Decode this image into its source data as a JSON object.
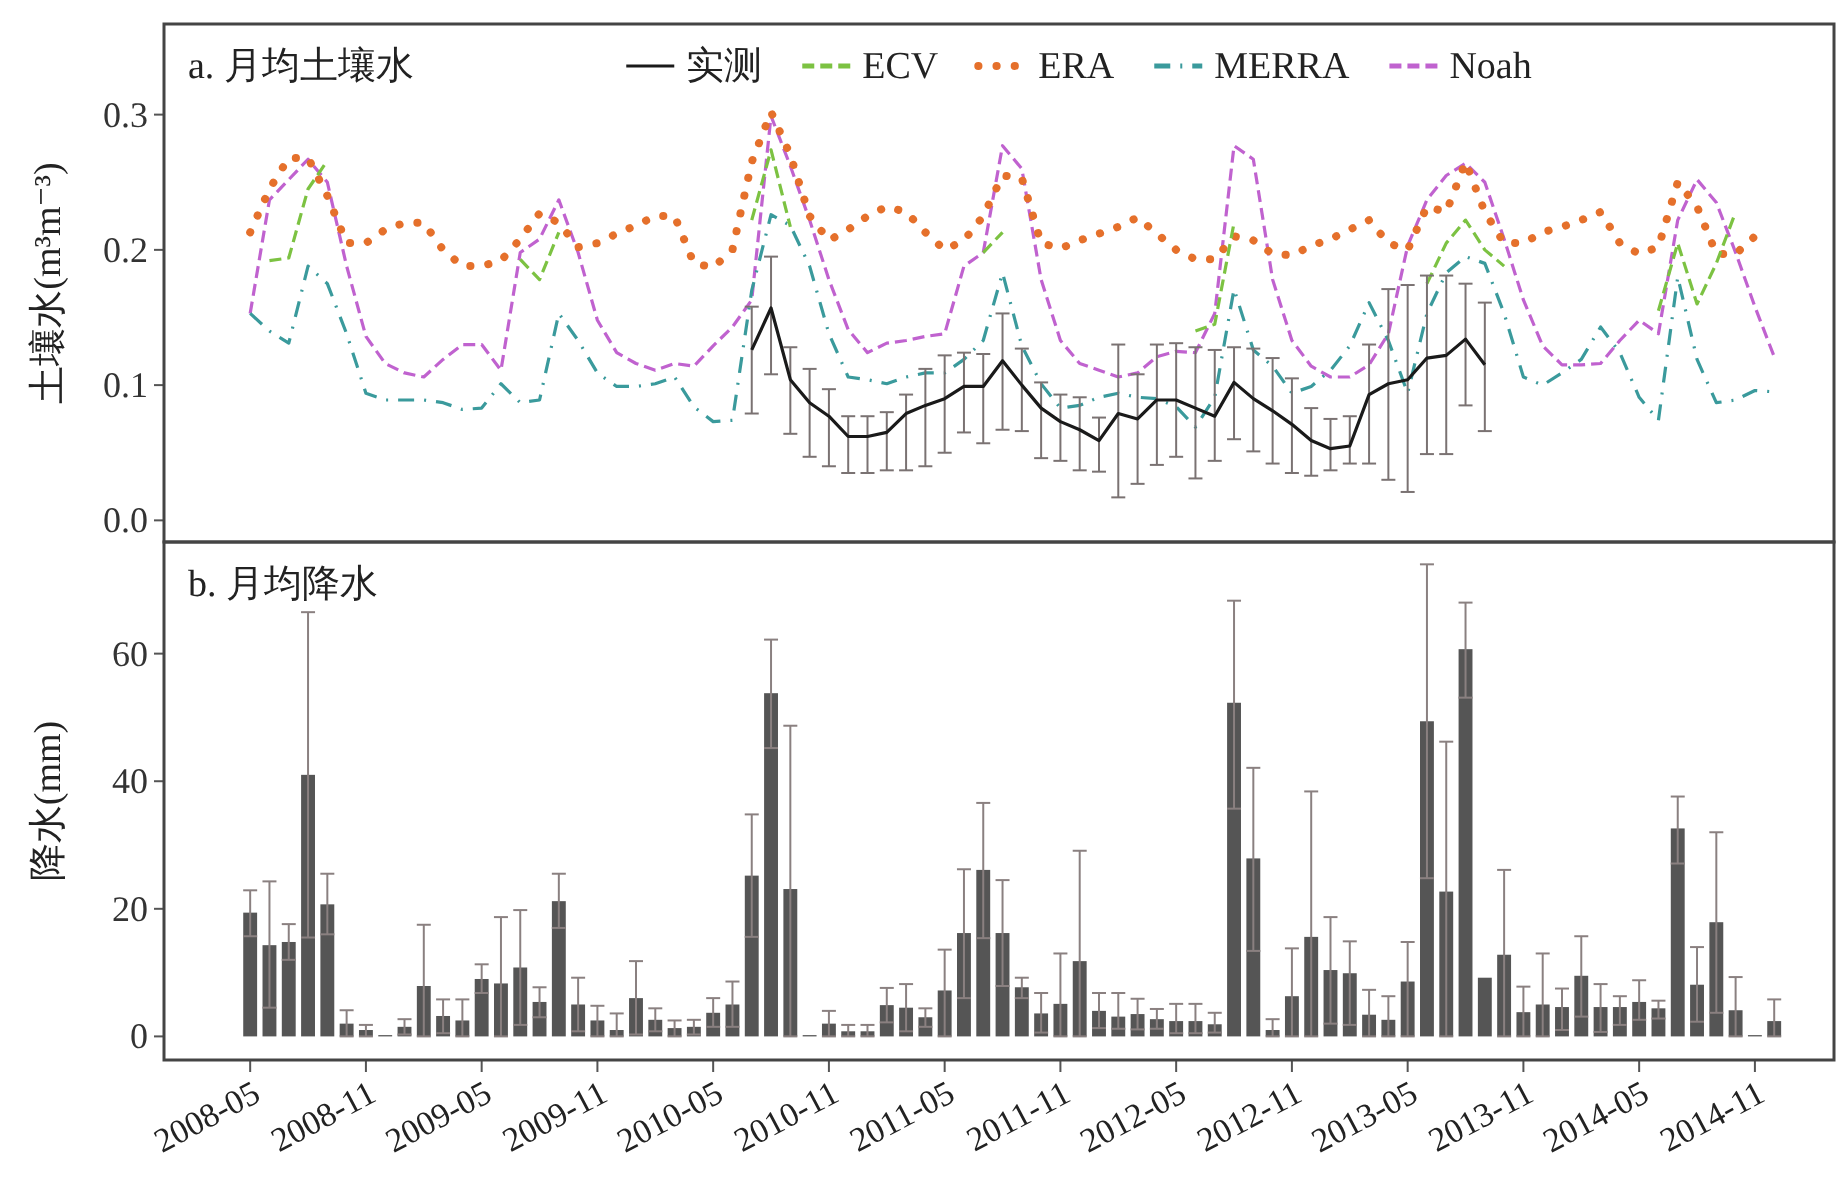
{
  "chart_data": [
    {
      "type": "line",
      "title": "a. 月均土壤水",
      "ylabel": "土壤水(m³m⁻³)",
      "legend": "top",
      "tick_labels": "y",
      "xlim": [
        "2007-12-17",
        "2015-03-04"
      ],
      "ylim": [
        -0.016,
        0.367
      ],
      "yticks": [
        {
          "value": 0,
          "label": "0.0"
        },
        0.1,
        0.2,
        0.3
      ],
      "x": [
        "2008-05",
        "2008-06",
        "2008-07",
        "2008-08",
        "2008-09",
        "2008-10",
        "2008-11",
        "2008-12",
        "2009-01",
        "2009-02",
        "2009-03",
        "2009-04",
        "2009-05",
        "2009-06",
        "2009-07",
        "2009-08",
        "2009-09",
        "2009-10",
        "2009-11",
        "2009-12",
        "2010-01",
        "2010-02",
        "2010-03",
        "2010-04",
        "2010-05",
        "2010-06",
        "2010-07",
        "2010-08",
        "2010-09",
        "2010-10",
        "2010-11",
        "2010-12",
        "2011-01",
        "2011-02",
        "2011-03",
        "2011-04",
        "2011-05",
        "2011-06",
        "2011-07",
        "2011-08",
        "2011-09",
        "2011-10",
        "2011-11",
        "2011-12",
        "2012-01",
        "2012-02",
        "2012-03",
        "2012-04",
        "2012-05",
        "2012-06",
        "2012-07",
        "2012-08",
        "2012-09",
        "2012-10",
        "2012-11",
        "2012-12",
        "2013-01",
        "2013-02",
        "2013-03",
        "2013-04",
        "2013-05",
        "2013-06",
        "2013-07",
        "2013-08",
        "2013-09",
        "2013-10",
        "2013-11",
        "2013-12",
        "2014-01",
        "2014-02",
        "2014-03",
        "2014-04",
        "2014-05",
        "2014-06",
        "2014-07",
        "2014-08",
        "2014-09",
        "2014-10",
        "2014-11",
        "2014-12"
      ],
      "series": [
        {
          "name": "实测",
          "color": "#1a1a1a",
          "line_style": "solid",
          "values": [
            null,
            null,
            null,
            null,
            null,
            null,
            null,
            null,
            null,
            null,
            null,
            null,
            null,
            null,
            null,
            null,
            null,
            null,
            null,
            null,
            null,
            null,
            null,
            null,
            null,
            null,
            0.126,
            0.157,
            0.104,
            0.087,
            0.077,
            0.062,
            0.062,
            0.065,
            0.079,
            0.085,
            0.09,
            0.099,
            0.099,
            0.118,
            0.1,
            0.083,
            0.073,
            0.067,
            0.059,
            0.079,
            0.075,
            0.089,
            0.089,
            0.083,
            0.077,
            0.102,
            0.09,
            0.081,
            0.071,
            0.059,
            0.053,
            0.055,
            0.093,
            0.101,
            0.104,
            0.12,
            0.122,
            0.134,
            0.115,
            null,
            null,
            null,
            null,
            null,
            null,
            null,
            null,
            null,
            null,
            null,
            null,
            null,
            null,
            null
          ],
          "errors": [
            null,
            null,
            null,
            null,
            null,
            null,
            null,
            null,
            null,
            null,
            null,
            null,
            null,
            null,
            null,
            null,
            null,
            null,
            null,
            null,
            null,
            null,
            null,
            null,
            null,
            null,
            [
              0.079,
              0.158
            ],
            [
              0.108,
              0.195
            ],
            [
              0.064,
              0.128
            ],
            [
              0.047,
              0.112
            ],
            [
              0.04,
              0.097
            ],
            [
              0.035,
              0.077
            ],
            [
              0.035,
              0.077
            ],
            [
              0.037,
              0.08
            ],
            [
              0.037,
              0.093
            ],
            [
              0.04,
              0.112
            ],
            [
              0.05,
              0.122
            ],
            [
              0.065,
              0.124
            ],
            [
              0.057,
              0.123
            ],
            [
              0.067,
              0.153
            ],
            [
              0.066,
              0.127
            ],
            [
              0.046,
              0.102
            ],
            [
              0.044,
              0.093
            ],
            [
              0.037,
              0.091
            ],
            [
              0.036,
              0.076
            ],
            [
              0.017,
              0.13
            ],
            [
              0.027,
              0.108
            ],
            [
              0.041,
              0.13
            ],
            [
              0.047,
              0.131
            ],
            [
              0.031,
              0.128
            ],
            [
              0.044,
              0.126
            ],
            [
              0.06,
              0.128
            ],
            [
              0.051,
              0.127
            ],
            [
              0.042,
              0.12
            ],
            [
              0.035,
              0.105
            ],
            [
              0.033,
              0.083
            ],
            [
              0.037,
              0.075
            ],
            [
              0.042,
              0.077
            ],
            [
              0.042,
              0.13
            ],
            [
              0.03,
              0.171
            ],
            [
              0.021,
              0.174
            ],
            [
              0.049,
              0.181
            ],
            [
              0.049,
              0.181
            ],
            [
              0.085,
              0.175
            ],
            [
              0.066,
              0.161
            ],
            null,
            null,
            null,
            null,
            null,
            null,
            null,
            null,
            null,
            null,
            null,
            null,
            null,
            null,
            null
          ]
        },
        {
          "name": "ECV",
          "color": "#7cc242",
          "line_style": "dashed",
          "values": [
            null,
            0.192,
            0.194,
            0.245,
            0.266,
            null,
            null,
            null,
            null,
            null,
            null,
            null,
            null,
            null,
            0.193,
            0.178,
            0.213,
            null,
            null,
            null,
            null,
            null,
            null,
            null,
            null,
            null,
            0.222,
            0.274,
            0.217,
            null,
            null,
            null,
            null,
            null,
            null,
            null,
            null,
            null,
            0.198,
            0.213,
            null,
            null,
            null,
            null,
            null,
            null,
            null,
            null,
            null,
            0.14,
            0.145,
            0.22,
            null,
            null,
            null,
            null,
            null,
            null,
            null,
            null,
            null,
            0.175,
            0.205,
            0.222,
            0.2,
            0.188,
            null,
            null,
            null,
            null,
            null,
            null,
            null,
            0.155,
            0.205,
            0.16,
            0.19,
            0.228,
            null,
            null
          ]
        },
        {
          "name": "ERA",
          "color": "#e5702b",
          "line_style": "dotted",
          "values": [
            0.213,
            0.245,
            0.268,
            0.268,
            0.24,
            0.205,
            0.205,
            0.215,
            0.22,
            0.22,
            0.2,
            0.188,
            0.188,
            0.192,
            0.208,
            0.227,
            0.22,
            0.202,
            0.205,
            0.212,
            0.218,
            0.225,
            0.225,
            0.19,
            0.187,
            0.2,
            0.265,
            0.302,
            0.27,
            0.225,
            0.207,
            0.215,
            0.225,
            0.232,
            0.228,
            0.213,
            0.2,
            0.207,
            0.225,
            0.255,
            0.253,
            0.205,
            0.201,
            0.207,
            0.212,
            0.217,
            0.224,
            0.212,
            0.2,
            0.193,
            0.193,
            0.21,
            0.207,
            0.197,
            0.196,
            0.203,
            0.208,
            0.215,
            0.222,
            0.205,
            0.2,
            0.232,
            0.228,
            0.265,
            0.228,
            0.205,
            0.205,
            0.213,
            0.217,
            0.222,
            0.228,
            0.205,
            0.197,
            0.202,
            0.25,
            0.232,
            0.197,
            0.197,
            0.21,
            null
          ]
        },
        {
          "name": "MERRA",
          "color": "#3a9a9c",
          "line_style": "dashdot",
          "values": [
            0.153,
            0.14,
            0.131,
            0.188,
            0.175,
            0.138,
            0.094,
            0.089,
            0.089,
            0.089,
            0.087,
            0.082,
            0.083,
            0.101,
            0.087,
            0.089,
            0.153,
            0.133,
            0.109,
            0.099,
            0.099,
            0.101,
            0.106,
            0.084,
            0.073,
            0.074,
            0.17,
            0.226,
            0.218,
            0.188,
            0.138,
            0.106,
            0.104,
            0.101,
            0.106,
            0.109,
            0.109,
            0.119,
            0.133,
            0.183,
            0.129,
            0.101,
            0.083,
            0.085,
            0.091,
            0.094,
            0.091,
            0.09,
            0.084,
            0.069,
            0.091,
            0.171,
            0.126,
            0.114,
            0.094,
            0.099,
            0.111,
            0.129,
            0.161,
            0.133,
            0.094,
            0.153,
            0.183,
            0.195,
            0.19,
            0.153,
            0.106,
            0.1,
            0.109,
            0.119,
            0.143,
            0.124,
            0.091,
            0.074,
            0.18,
            0.119,
            0.087,
            0.089,
            0.096,
            0.095
          ]
        },
        {
          "name": "Noah",
          "color": "#c062cf",
          "line_style": "dashed",
          "values": [
            0.153,
            0.237,
            0.252,
            0.267,
            0.25,
            0.188,
            0.136,
            0.116,
            0.109,
            0.106,
            0.119,
            0.13,
            0.13,
            0.111,
            0.198,
            0.208,
            0.237,
            0.198,
            0.148,
            0.124,
            0.116,
            0.111,
            0.116,
            0.114,
            0.129,
            0.143,
            0.163,
            0.299,
            0.262,
            0.222,
            0.178,
            0.141,
            0.124,
            0.131,
            0.133,
            0.136,
            0.138,
            0.188,
            0.198,
            0.277,
            0.26,
            0.178,
            0.133,
            0.116,
            0.111,
            0.106,
            0.109,
            0.121,
            0.125,
            0.124,
            0.153,
            0.277,
            0.267,
            0.178,
            0.133,
            0.114,
            0.106,
            0.106,
            0.115,
            0.138,
            0.203,
            0.237,
            0.255,
            0.264,
            0.25,
            0.208,
            0.163,
            0.129,
            0.115,
            0.115,
            0.116,
            0.133,
            0.148,
            0.138,
            0.222,
            0.252,
            0.235,
            0.198,
            0.158,
            0.121
          ]
        }
      ]
    },
    {
      "type": "bar",
      "title": "b. 月均降水",
      "ylabel": "降水(mm)",
      "color": "#555555",
      "xlim": [
        "2007-12-17",
        "2015-03-04"
      ],
      "ylim": [
        -3.7,
        77.5
      ],
      "yticks": [
        0,
        20,
        40,
        60
      ],
      "xticks": [
        "2008-05",
        "2008-11",
        "2009-05",
        "2009-11",
        "2010-05",
        "2010-11",
        "2011-05",
        "2011-11",
        "2012-05",
        "2012-11",
        "2013-05",
        "2013-11",
        "2014-05",
        "2014-11"
      ],
      "x": [
        "2008-05",
        "2008-06",
        "2008-07",
        "2008-08",
        "2008-09",
        "2008-10",
        "2008-11",
        "2008-12",
        "2009-01",
        "2009-02",
        "2009-03",
        "2009-04",
        "2009-05",
        "2009-06",
        "2009-07",
        "2009-08",
        "2009-09",
        "2009-10",
        "2009-11",
        "2009-12",
        "2010-01",
        "2010-02",
        "2010-03",
        "2010-04",
        "2010-05",
        "2010-06",
        "2010-07",
        "2010-08",
        "2010-09",
        "2010-10",
        "2010-11",
        "2010-12",
        "2011-01",
        "2011-02",
        "2011-03",
        "2011-04",
        "2011-05",
        "2011-06",
        "2011-07",
        "2011-08",
        "2011-09",
        "2011-10",
        "2011-11",
        "2011-12",
        "2012-01",
        "2012-02",
        "2012-03",
        "2012-04",
        "2012-05",
        "2012-06",
        "2012-07",
        "2012-08",
        "2012-09",
        "2012-10",
        "2012-11",
        "2012-12",
        "2013-01",
        "2013-02",
        "2013-03",
        "2013-04",
        "2013-05",
        "2013-06",
        "2013-07",
        "2013-08",
        "2013-09",
        "2013-10",
        "2013-11",
        "2013-12",
        "2014-01",
        "2014-02",
        "2014-03",
        "2014-04",
        "2014-05",
        "2014-06",
        "2014-07",
        "2014-08",
        "2014-09",
        "2014-10",
        "2014-11",
        "2014-12"
      ],
      "values": [
        19.4,
        14.3,
        14.8,
        41,
        20.7,
        2.0,
        1.0,
        0.2,
        1.5,
        7.9,
        3.2,
        2.5,
        9.0,
        8.3,
        10.8,
        5.4,
        21.2,
        5.0,
        2.5,
        1.0,
        6.0,
        2.6,
        1.3,
        1.5,
        3.7,
        5.0,
        25.2,
        53.8,
        23.1,
        0.2,
        2.0,
        0.8,
        0.8,
        4.9,
        4.5,
        3.0,
        7.2,
        16.2,
        26.1,
        16.2,
        7.7,
        3.6,
        5.1,
        11.8,
        4.0,
        3.1,
        3.5,
        2.7,
        2.4,
        2.4,
        1.9,
        52.3,
        27.9,
        1.0,
        6.3,
        15.6,
        10.4,
        9.9,
        3.4,
        2.6,
        8.6,
        49.4,
        22.7,
        60.7,
        9.2,
        12.8,
        3.8,
        5.0,
        4.6,
        9.5,
        4.6,
        4.6,
        5.4,
        4.4,
        32.6,
        8.1,
        17.9,
        4.1,
        0.2,
        2.4
      ],
      "errors": [
        [
          15.7,
          22.9
        ],
        [
          4.5,
          24.3
        ],
        [
          12,
          17.6
        ],
        [
          15.5,
          66.5
        ],
        [
          16,
          25.5
        ],
        [
          0,
          4.1
        ],
        [
          0,
          1.8
        ],
        null,
        [
          0.3,
          2.7
        ],
        [
          0,
          17.5
        ],
        [
          0.5,
          5.8
        ],
        [
          0,
          5.8
        ],
        [
          6.8,
          11.3
        ],
        [
          0,
          18.7
        ],
        [
          1.8,
          19.8
        ],
        [
          3,
          7.7
        ],
        [
          17,
          25.5
        ],
        [
          0.8,
          9.2
        ],
        [
          0,
          4.8
        ],
        [
          0,
          3.6
        ],
        [
          0.3,
          11.8
        ],
        [
          0.8,
          4.4
        ],
        [
          0,
          2.5
        ],
        [
          0.3,
          2.6
        ],
        [
          1.5,
          6
        ],
        [
          1.5,
          8.6
        ],
        [
          15.6,
          34.8
        ],
        [
          45.2,
          62.2
        ],
        [
          0,
          48.7
        ],
        null,
        [
          0,
          4
        ],
        [
          0,
          1.8
        ],
        [
          0,
          1.8
        ],
        [
          2.2,
          7.6
        ],
        [
          0.8,
          8.2
        ],
        [
          1.5,
          4.4
        ],
        [
          0,
          13.6
        ],
        [
          6,
          26.2
        ],
        [
          15.4,
          36.6
        ],
        [
          7.9,
          24.5
        ],
        [
          6,
          9.2
        ],
        [
          0.6,
          6.8
        ],
        [
          0,
          13
        ],
        [
          0,
          29.1
        ],
        [
          1.3,
          6.8
        ],
        [
          1.2,
          6.8
        ],
        [
          1.1,
          5.9
        ],
        [
          1.2,
          4.3
        ],
        [
          0.5,
          5.1
        ],
        [
          0.5,
          5.1
        ],
        [
          0.6,
          3.7
        ],
        [
          35.7,
          68.3
        ],
        [
          13.4,
          42.1
        ],
        [
          0,
          2.7
        ],
        [
          0,
          13.8
        ],
        [
          0,
          38.4
        ],
        [
          2,
          18.7
        ],
        [
          1.8,
          14.9
        ],
        [
          0,
          7.3
        ],
        [
          0,
          6.3
        ],
        [
          0,
          14.8
        ],
        [
          24.8,
          74
        ],
        [
          0,
          46.2
        ],
        [
          53.1,
          68
        ],
        null,
        [
          0,
          26.1
        ],
        [
          0,
          7.8
        ],
        [
          0,
          13
        ],
        [
          1,
          7.5
        ],
        [
          3.1,
          15.7
        ],
        [
          0.7,
          8.2
        ],
        [
          1.8,
          6.3
        ],
        [
          2.6,
          8.8
        ],
        [
          2.8,
          5.6
        ],
        [
          27.1,
          37.6
        ],
        [
          2.3,
          14
        ],
        [
          3.7,
          32
        ],
        [
          0,
          9.3
        ],
        null,
        [
          0,
          5.8
        ]
      ]
    }
  ]
}
